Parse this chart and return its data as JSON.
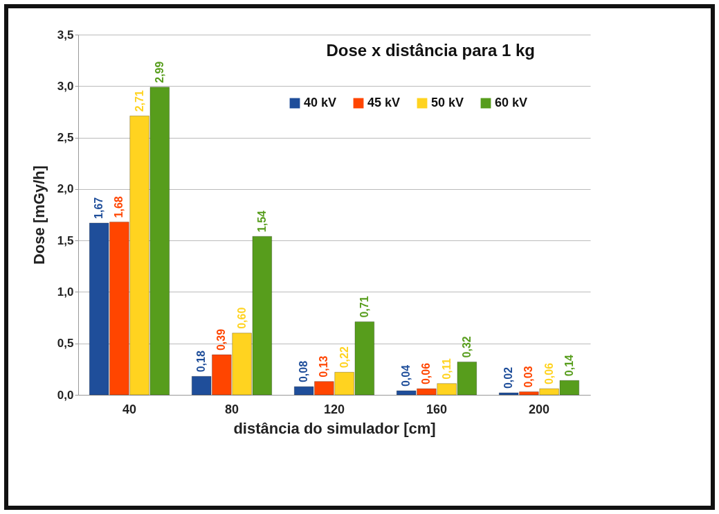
{
  "chart_data": {
    "type": "bar",
    "title": "Dose x distância para 1 kg",
    "xlabel": "distância do simulador [cm]",
    "ylabel": "Dose [mGy/h]",
    "categories": [
      "40",
      "80",
      "120",
      "160",
      "200"
    ],
    "series": [
      {
        "name": "40 kV",
        "color": "#1f4e9a",
        "values": [
          1.67,
          0.18,
          0.08,
          0.04,
          0.02
        ],
        "value_labels": [
          "1,67",
          "0,18",
          "0,08",
          "0,04",
          "0,02"
        ]
      },
      {
        "name": "45 kV",
        "color": "#ff4500",
        "values": [
          1.68,
          0.39,
          0.13,
          0.06,
          0.03
        ],
        "value_labels": [
          "1,68",
          "0,39",
          "0,13",
          "0,06",
          "0,03"
        ]
      },
      {
        "name": "50 kV",
        "color": "#ffd320",
        "values": [
          2.71,
          0.6,
          0.22,
          0.11,
          0.06
        ],
        "value_labels": [
          "2,71",
          "0,60",
          "0,22",
          "0,11",
          "0,06"
        ]
      },
      {
        "name": "60 kV",
        "color": "#579d1c",
        "values": [
          2.99,
          1.54,
          0.71,
          0.32,
          0.14
        ],
        "value_labels": [
          "2,99",
          "1,54",
          "0,71",
          "0,32",
          "0,14"
        ]
      }
    ],
    "ylim": [
      0,
      3.5
    ],
    "yticks": [
      {
        "value": 0,
        "label": "0,0"
      },
      {
        "value": 0.5,
        "label": "0,5"
      },
      {
        "value": 1,
        "label": "1,0"
      },
      {
        "value": 1.5,
        "label": "1,5"
      },
      {
        "value": 2,
        "label": "2,0"
      },
      {
        "value": 2.5,
        "label": "2,5"
      },
      {
        "value": 3,
        "label": "3,0"
      },
      {
        "value": 3.5,
        "label": "3,5"
      }
    ],
    "grid": "y",
    "legend": "top right"
  }
}
